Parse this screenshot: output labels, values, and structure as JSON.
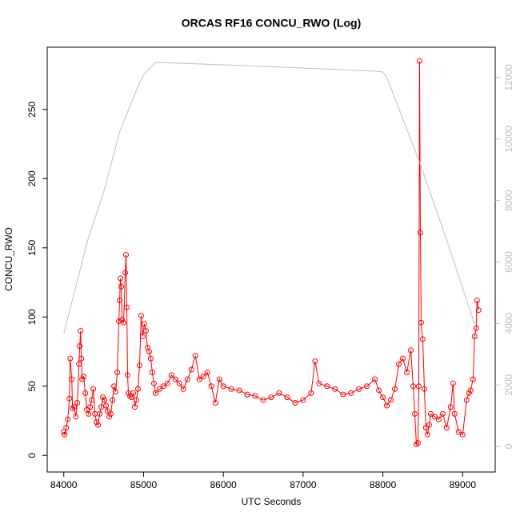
{
  "chart_data": {
    "type": "line",
    "title": "ORCAS RF16 CONCU_RWO (Log)",
    "x_label": "UTC Seconds",
    "y_label": "CONCU_RWO",
    "xlim": [
      83792,
      89408
    ],
    "xticks": [
      84000,
      85000,
      86000,
      87000,
      88000,
      89000
    ],
    "ylim": [
      -12,
      295
    ],
    "yticks": [
      0,
      50,
      100,
      150,
      200,
      250
    ],
    "y2lim": [
      -833,
      12988
    ],
    "y2ticks": [
      0,
      2000,
      4000,
      6000,
      8000,
      10000,
      12000
    ],
    "series": [
      {
        "color": "#ff0000",
        "markers": "circle",
        "x": [
          84000,
          84010,
          84030,
          84050,
          84070,
          84080,
          84100,
          84110,
          84130,
          84150,
          84170,
          84190,
          84200,
          84210,
          84220,
          84230,
          84250,
          84270,
          84290,
          84310,
          84330,
          84350,
          84370,
          84390,
          84410,
          84430,
          84450,
          84470,
          84490,
          84510,
          84530,
          84550,
          84570,
          84590,
          84610,
          84630,
          84650,
          84670,
          84690,
          84700,
          84710,
          84720,
          84730,
          84750,
          84770,
          84780,
          84790,
          84800,
          84810,
          84830,
          84850,
          84870,
          84890,
          84910,
          84930,
          84950,
          84970,
          84990,
          85010,
          85030,
          85050,
          85070,
          85090,
          85110,
          85130,
          85150,
          85200,
          85250,
          85300,
          85350,
          85400,
          85450,
          85500,
          85550,
          85600,
          85650,
          85700,
          85750,
          85800,
          85850,
          85900,
          85950,
          86000,
          86100,
          86200,
          86300,
          86400,
          86500,
          86600,
          86700,
          86800,
          86900,
          87000,
          87100,
          87150,
          87200,
          87300,
          87400,
          87500,
          87600,
          87700,
          87800,
          87900,
          87950,
          88000,
          88050,
          88100,
          88150,
          88200,
          88250,
          88300,
          88350,
          88380,
          88400,
          88420,
          88440,
          88450,
          88460,
          88470,
          88480,
          88500,
          88520,
          88540,
          88560,
          88580,
          88600,
          88650,
          88700,
          88750,
          88800,
          88850,
          88880,
          88900,
          88950,
          89000,
          89050,
          89080,
          89100,
          89130,
          89150,
          89170,
          89180,
          89200
        ],
        "values": [
          17,
          15,
          20,
          26,
          41,
          70,
          55,
          34,
          35,
          28,
          38,
          66,
          79,
          90,
          70,
          55,
          57,
          45,
          33,
          30,
          35,
          40,
          48,
          30,
          24,
          22,
          30,
          35,
          42,
          40,
          36,
          32,
          28,
          30,
          40,
          50,
          46,
          60,
          97,
          112,
          128,
          122,
          98,
          96,
          132,
          145,
          107,
          58,
          45,
          43,
          42,
          45,
          35,
          40,
          48,
          65,
          101,
          86,
          95,
          90,
          78,
          75,
          70,
          60,
          52,
          45,
          48,
          50,
          52,
          58,
          55,
          52,
          48,
          55,
          62,
          72,
          55,
          57,
          60,
          50,
          38,
          55,
          50,
          48,
          47,
          44,
          43,
          40,
          42,
          45,
          42,
          38,
          40,
          45,
          68,
          52,
          50,
          48,
          44,
          45,
          48,
          50,
          55,
          47,
          42,
          36,
          40,
          48,
          66,
          70,
          60,
          76,
          50,
          30,
          8,
          9,
          50,
          285,
          161,
          96,
          84,
          48,
          20,
          15,
          22,
          30,
          28,
          26,
          30,
          20,
          35,
          52,
          30,
          17,
          15,
          40,
          45,
          47,
          55,
          86,
          92,
          112,
          105
        ]
      },
      {
        "color": "#bebebe",
        "axis": "y2",
        "x": [
          84000,
          84300,
          84500,
          84700,
          84900,
          85000,
          85150,
          86000,
          87000,
          87900,
          88000,
          88050,
          88450,
          88800,
          89150
        ],
        "values": [
          3670,
          6715,
          8277,
          10229,
          11530,
          12103,
          12494,
          12415,
          12311,
          12207,
          12181,
          12000,
          9318,
          6715,
          3982
        ]
      }
    ]
  }
}
